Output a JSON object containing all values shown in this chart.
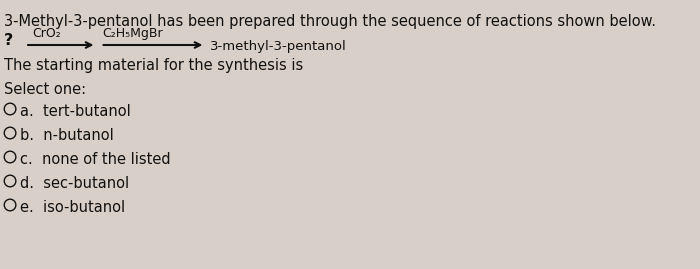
{
  "background_color": "#d8d0c8",
  "title_line": "3-Methyl-3-pentanol has been prepared through the sequence of reactions shown below.",
  "reaction_start": "?",
  "reagent1": "CrO₂",
  "reagent2": "C₂H₅MgBr",
  "product": "3-methyl-3-pentanol",
  "statement": "The starting material for the synthesis is",
  "select_label": "Select one:",
  "options": [
    "a.  tert-butanol",
    "b.  n-butanol",
    "c.  none of the listed",
    "d.  sec-butanol",
    "e.  iso-butanol"
  ],
  "font_size_title": 10.5,
  "font_size_body": 10.5,
  "font_size_reagent": 9.0,
  "text_color": "#111111",
  "arrow_color": "#111111"
}
